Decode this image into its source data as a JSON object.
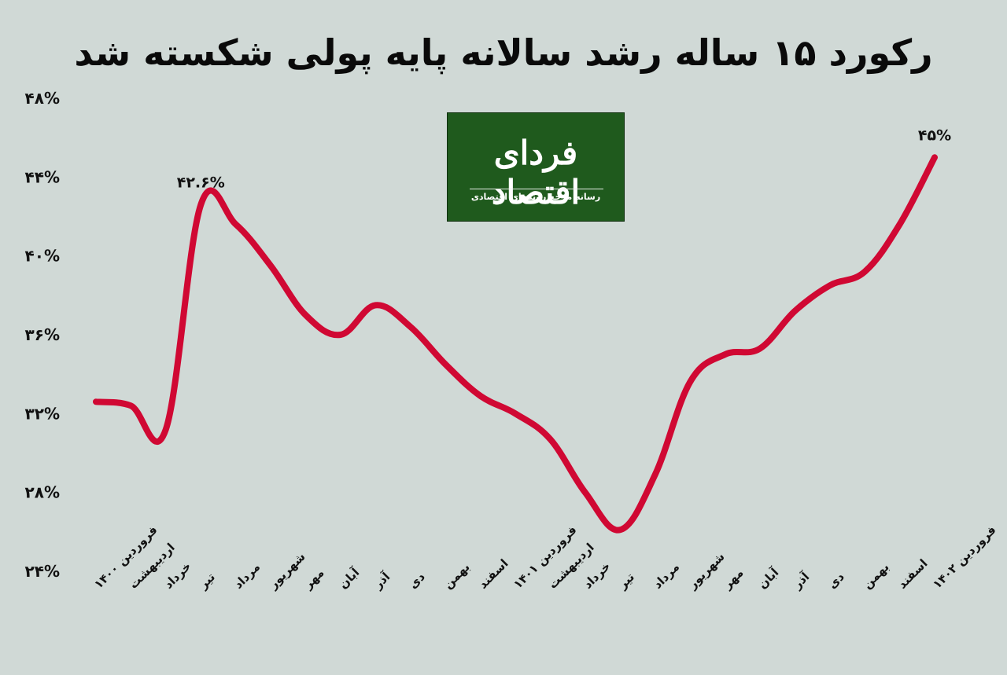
{
  "header": {
    "title": "رکورد ۱۵ ساله رشد سالانه پایه پولی شکسته شد"
  },
  "logo": {
    "name": "فردای اقتصاد",
    "tagline": "رسانه مرجع روندهای اقتصادی",
    "background_color": "#1f5a1d"
  },
  "colors": {
    "background": "#d0d9d6",
    "line": "#d00833"
  },
  "chart_data": {
    "type": "line",
    "title": "رکورد ۱۵ ساله رشد سالانه پایه پولی شکسته شد",
    "xlabel": "",
    "ylabel": "",
    "ylim": [
      24,
      48
    ],
    "yticks": [
      24,
      28,
      32,
      36,
      40,
      44,
      48
    ],
    "ytick_labels": [
      "۲۴%",
      "۲۸%",
      "۳۲%",
      "۳۶%",
      "۴۰%",
      "۴۴%",
      "۴۸%"
    ],
    "grid": false,
    "legend": "none",
    "categories": [
      "فروردین ۱۴۰۰",
      "اردیبهشت",
      "خرداد",
      "تیر",
      "مرداد",
      "شهریور",
      "مهر",
      "آبان",
      "آذر",
      "دی",
      "بهمن",
      "اسفند",
      "فروردین ۱۴۰۱",
      "اردیبهشت",
      "خرداد",
      "تیر",
      "مرداد",
      "شهریور",
      "مهر",
      "آبان",
      "آذر",
      "دی",
      "بهمن",
      "اسفند",
      "فروردین ۱۴۰۲"
    ],
    "series": [
      {
        "values": [
          32.6,
          32.4,
          31.2,
          42.6,
          41.6,
          39.5,
          37.0,
          36.0,
          37.5,
          36.4,
          34.5,
          32.9,
          32.0,
          30.7,
          28.0,
          26.1,
          28.9,
          33.6,
          35.0,
          35.3,
          37.2,
          38.5,
          39.2,
          41.6,
          45.0
        ]
      }
    ],
    "annotations": [
      {
        "index": 3,
        "text": "۴۲.۶%"
      },
      {
        "index": 24,
        "text": "۴۵%"
      }
    ]
  }
}
